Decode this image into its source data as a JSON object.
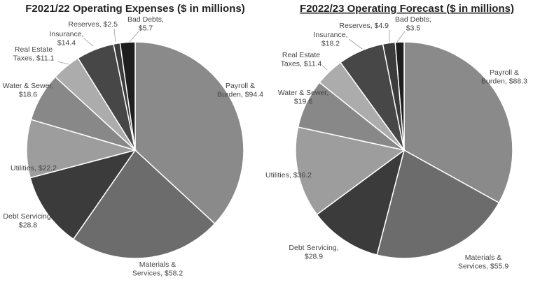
{
  "chart_data": [
    {
      "type": "pie",
      "title": "F2021/22 Operating Expenses ($ in millions)",
      "title_underlined": false,
      "categories": [
        "Payroll & Burden",
        "Materials & Services",
        "Debt Servicing",
        "Utilities",
        "Water & Sewer",
        "Real Estate Taxes",
        "Insurance",
        "Reserves",
        "Bad Debts"
      ],
      "values": [
        94.4,
        58.2,
        28.8,
        22.2,
        18.6,
        11.1,
        14.4,
        2.5,
        5.7
      ],
      "colors": [
        "#8a8a8a",
        "#6c6c6c",
        "#3b3b3b",
        "#9d9d9d",
        "#888888",
        "#acacac",
        "#474747",
        "#3c3c3c",
        "#1e1e1e"
      ],
      "labels": [
        [
          "Payroll &",
          "Burden,  $94.4"
        ],
        [
          "Materials &",
          "Services,  $58.2"
        ],
        [
          "Debt Servicing,",
          "$28.8"
        ],
        [
          "Utilities,  $22.2"
        ],
        [
          "Water & Sewer,",
          "$18.6"
        ],
        [
          "Real Estate",
          "Taxes,  $11.1"
        ],
        [
          "Insurance,",
          "$14.4"
        ],
        [
          "Reserves,  $2.5"
        ],
        [
          "Bad Debts,",
          "$5.7"
        ]
      ]
    },
    {
      "type": "pie",
      "title": "F2022/23 Operating Forecast ($ in millions)",
      "title_underlined": true,
      "categories": [
        "Payroll & Burden",
        "Materials & Services",
        "Debt Servicing",
        "Utilities",
        "Water & Sewer",
        "Real Estate Taxes",
        "Insurance",
        "Reserves",
        "Bad Debts"
      ],
      "values": [
        88.3,
        55.9,
        28.9,
        36.2,
        19.6,
        11.4,
        18.2,
        4.9,
        3.5
      ],
      "colors": [
        "#8a8a8a",
        "#6c6c6c",
        "#3b3b3b",
        "#9d9d9d",
        "#888888",
        "#acacac",
        "#474747",
        "#3c3c3c",
        "#1e1e1e"
      ],
      "labels": [
        [
          "Payroll &",
          "Burden,  $88.3"
        ],
        [
          "Materials &",
          "Services,  $55.9"
        ],
        [
          "Debt Servicing,",
          "$28.9"
        ],
        [
          "Utilities,  $36.2"
        ],
        [
          "Water & Sewer,",
          "$19.6"
        ],
        [
          "Real Estate",
          "Taxes,  $11.4"
        ],
        [
          "Insurance,",
          "$18.2"
        ],
        [
          "Reserves,  $4.9"
        ],
        [
          "Bad Debts,",
          "$3.5"
        ]
      ]
    }
  ]
}
